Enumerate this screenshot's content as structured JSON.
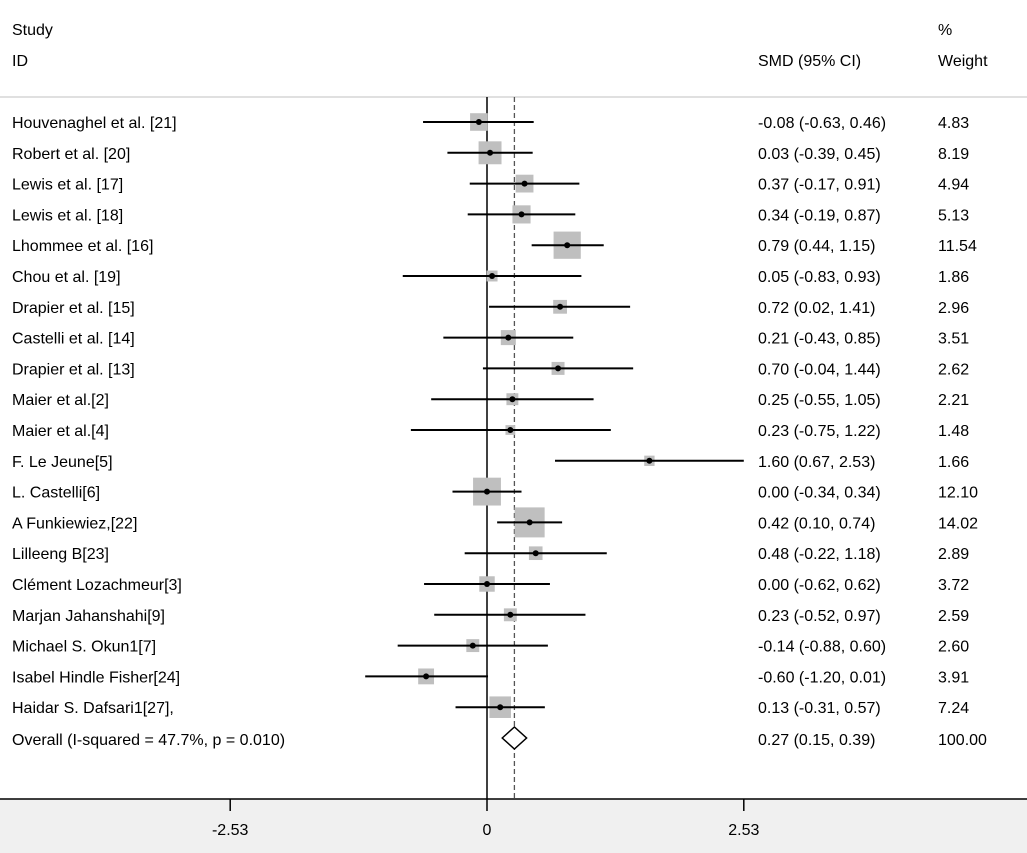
{
  "chart_data": {
    "type": "forest",
    "header": {
      "study_line1": "Study",
      "study_line2": "ID",
      "effect_label": "SMD (95% CI)",
      "weight_line1": "%",
      "weight_line2": "Weight"
    },
    "studies": [
      {
        "name": "Houvenaghel et al. [21]",
        "est": -0.08,
        "lo": -0.63,
        "hi": 0.46,
        "ci_text": "-0.08 (-0.63, 0.46)",
        "weight": 4.83,
        "weight_text": "4.83"
      },
      {
        "name": "Robert et al. [20]",
        "est": 0.03,
        "lo": -0.39,
        "hi": 0.45,
        "ci_text": "0.03 (-0.39, 0.45)",
        "weight": 8.19,
        "weight_text": "8.19"
      },
      {
        "name": "Lewis et al. [17]",
        "est": 0.37,
        "lo": -0.17,
        "hi": 0.91,
        "ci_text": "0.37 (-0.17, 0.91)",
        "weight": 4.94,
        "weight_text": "4.94"
      },
      {
        "name": "Lewis et al. [18]",
        "est": 0.34,
        "lo": -0.19,
        "hi": 0.87,
        "ci_text": "0.34 (-0.19, 0.87)",
        "weight": 5.13,
        "weight_text": "5.13"
      },
      {
        "name": "Lhommee et al. [16]",
        "est": 0.79,
        "lo": 0.44,
        "hi": 1.15,
        "ci_text": "0.79 (0.44, 1.15)",
        "weight": 11.54,
        "weight_text": "11.54"
      },
      {
        "name": "Chou et al. [19]",
        "est": 0.05,
        "lo": -0.83,
        "hi": 0.93,
        "ci_text": "0.05 (-0.83, 0.93)",
        "weight": 1.86,
        "weight_text": "1.86"
      },
      {
        "name": "Drapier et al. [15]",
        "est": 0.72,
        "lo": 0.02,
        "hi": 1.41,
        "ci_text": "0.72 (0.02, 1.41)",
        "weight": 2.96,
        "weight_text": "2.96"
      },
      {
        "name": "Castelli et al. [14]",
        "est": 0.21,
        "lo": -0.43,
        "hi": 0.85,
        "ci_text": "0.21 (-0.43, 0.85)",
        "weight": 3.51,
        "weight_text": "3.51"
      },
      {
        "name": "Drapier et al. [13]",
        "est": 0.7,
        "lo": -0.04,
        "hi": 1.44,
        "ci_text": "0.70 (-0.04, 1.44)",
        "weight": 2.62,
        "weight_text": "2.62"
      },
      {
        "name": "Maier et al.[2]",
        "est": 0.25,
        "lo": -0.55,
        "hi": 1.05,
        "ci_text": "0.25 (-0.55, 1.05)",
        "weight": 2.21,
        "weight_text": "2.21"
      },
      {
        "name": "Maier et al.[4]",
        "est": 0.23,
        "lo": -0.75,
        "hi": 1.22,
        "ci_text": "0.23 (-0.75, 1.22)",
        "weight": 1.48,
        "weight_text": "1.48"
      },
      {
        "name": "F. Le Jeune[5]",
        "est": 1.6,
        "lo": 0.67,
        "hi": 2.53,
        "ci_text": "1.60 (0.67, 2.53)",
        "weight": 1.66,
        "weight_text": "1.66"
      },
      {
        "name": "L. Castelli[6]",
        "est": 0.0,
        "lo": -0.34,
        "hi": 0.34,
        "ci_text": "0.00 (-0.34, 0.34)",
        "weight": 12.1,
        "weight_text": "12.10"
      },
      {
        "name": "A Funkiewiez,[22]",
        "est": 0.42,
        "lo": 0.1,
        "hi": 0.74,
        "ci_text": "0.42 (0.10, 0.74)",
        "weight": 14.02,
        "weight_text": "14.02"
      },
      {
        "name": "Lilleeng B[23]",
        "est": 0.48,
        "lo": -0.22,
        "hi": 1.18,
        "ci_text": "0.48 (-0.22, 1.18)",
        "weight": 2.89,
        "weight_text": "2.89"
      },
      {
        "name": "Clément Lozachmeur[3]",
        "est": 0.0,
        "lo": -0.62,
        "hi": 0.62,
        "ci_text": "0.00 (-0.62, 0.62)",
        "weight": 3.72,
        "weight_text": "3.72"
      },
      {
        "name": "Marjan Jahanshahi[9]",
        "est": 0.23,
        "lo": -0.52,
        "hi": 0.97,
        "ci_text": "0.23 (-0.52, 0.97)",
        "weight": 2.59,
        "weight_text": "2.59"
      },
      {
        "name": "Michael S. Okun1[7]",
        "est": -0.14,
        "lo": -0.88,
        "hi": 0.6,
        "ci_text": "-0.14 (-0.88, 0.60)",
        "weight": 2.6,
        "weight_text": "2.60"
      },
      {
        "name": "Isabel Hindle Fisher[24]",
        "est": -0.6,
        "lo": -1.2,
        "hi": 0.01,
        "ci_text": "-0.60 (-1.20, 0.01)",
        "weight": 3.91,
        "weight_text": "3.91"
      },
      {
        "name": "Haidar S. Dafsari1[27],",
        "est": 0.13,
        "lo": -0.31,
        "hi": 0.57,
        "ci_text": "0.13 (-0.31, 0.57)",
        "weight": 7.24,
        "weight_text": "7.24"
      }
    ],
    "overall": {
      "name": "Overall  (I-squared = 47.7%, p = 0.010)",
      "est": 0.27,
      "lo": 0.15,
      "hi": 0.39,
      "ci_text": "0.27 (0.15, 0.39)",
      "weight_text": "100.00"
    },
    "null_value": 0,
    "xlim": [
      -2.53,
      2.53
    ],
    "ticks": [
      -2.53,
      0,
      2.53
    ],
    "tick_labels": [
      "-2.53",
      "0",
      "2.53"
    ],
    "colors": {
      "box": "#bfbfbf",
      "line": "#000000",
      "axis_band": "#f0f0f0",
      "rule": "#c0c0c0"
    }
  }
}
